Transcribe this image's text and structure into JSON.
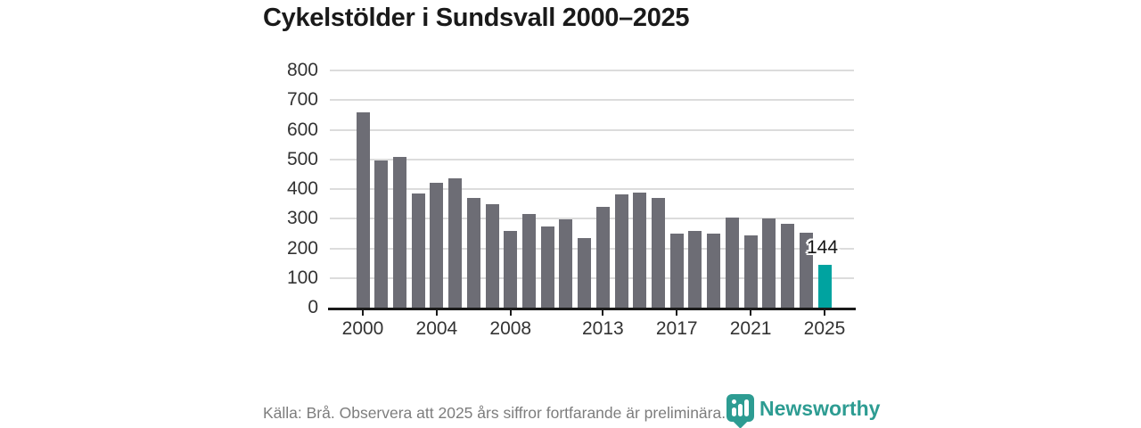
{
  "title": "Cykelstölder i Sundsvall 2000–2025",
  "source_note": "Källa: Brå. Observera att 2025 års siffror fortfarande är preliminära.",
  "annotation": {
    "label": "144",
    "year": 2025
  },
  "branding": {
    "logo_text": "Newsworthy",
    "logo_icon": "newsworthy-barchart-pin-icon"
  },
  "colors": {
    "bar_default": "#6d6d75",
    "bar_highlight": "#00a3a0",
    "grid": "#dcdcdc",
    "axis": "#1a1a1a",
    "tick_label": "#333333",
    "annotation_text": "#141414",
    "source_text": "#7d7d7d",
    "brand_teal": "#2d9c92",
    "title_text": "#1a1a1a"
  },
  "chart_data": {
    "type": "bar",
    "title": "Cykelstölder i Sundsvall 2000–2025",
    "xlabel": "",
    "ylabel": "",
    "categories": [
      2000,
      2001,
      2002,
      2003,
      2004,
      2005,
      2006,
      2007,
      2008,
      2009,
      2010,
      2011,
      2012,
      2013,
      2014,
      2015,
      2016,
      2017,
      2018,
      2019,
      2020,
      2021,
      2022,
      2023,
      2024,
      2025
    ],
    "values": [
      660,
      495,
      508,
      385,
      420,
      436,
      370,
      348,
      259,
      316,
      274,
      297,
      236,
      339,
      381,
      389,
      371,
      251,
      259,
      250,
      304,
      243,
      302,
      284,
      254,
      144
    ],
    "highlight_category": 2025,
    "data_label": {
      "category": 2025,
      "text": "144"
    },
    "ylim": [
      0,
      800
    ],
    "yticks": [
      0,
      100,
      200,
      300,
      400,
      500,
      600,
      700,
      800
    ],
    "xticks": [
      2000,
      2004,
      2008,
      2013,
      2017,
      2021,
      2025
    ],
    "grid": "horizontal",
    "legend": "none"
  }
}
